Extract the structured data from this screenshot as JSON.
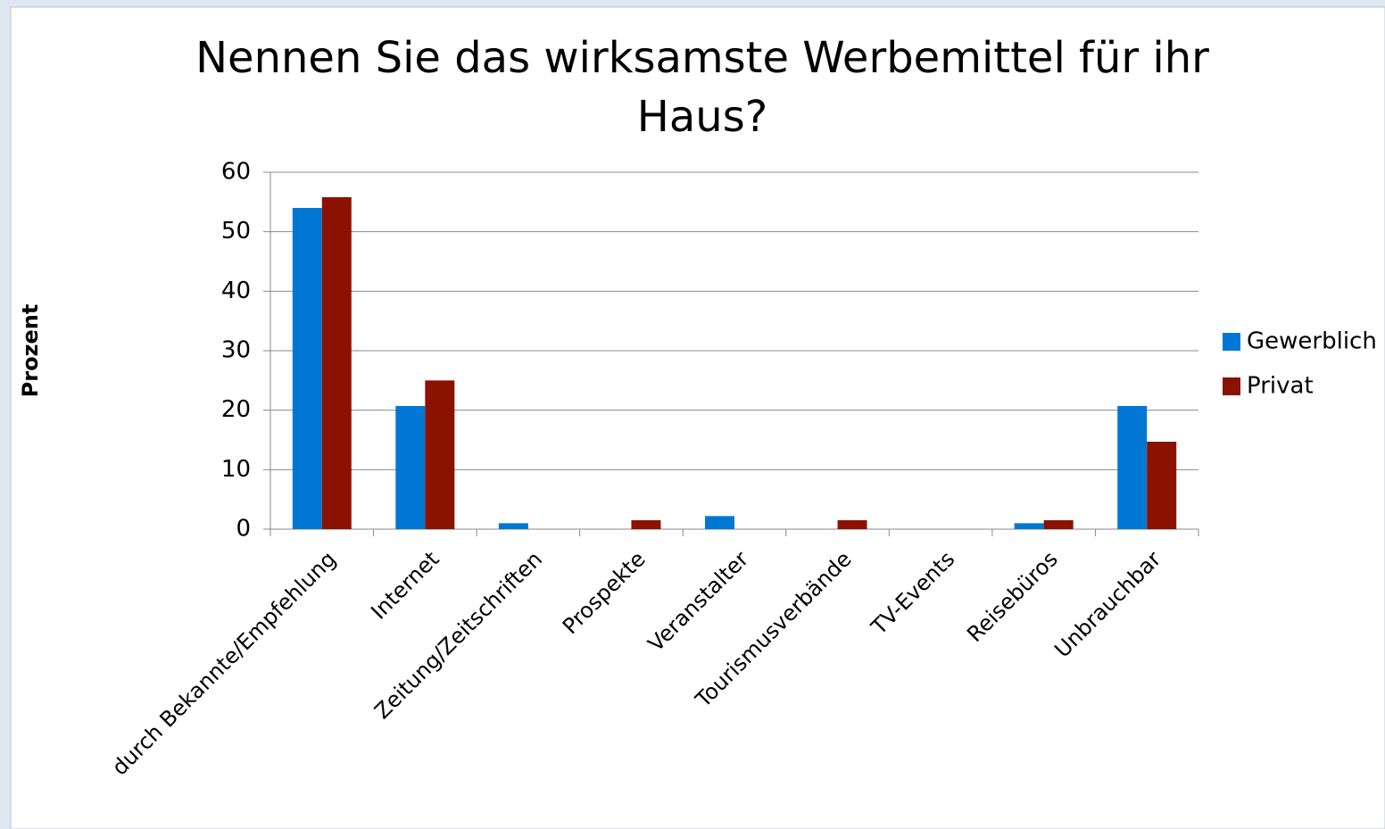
{
  "chart_data": {
    "type": "bar",
    "title": "Nennen Sie das wirksamste Werbemittel für ihr Haus?",
    "y_label": "Prozent",
    "categories": [
      "durch Bekannte/Empfehlung",
      "Internet",
      "Zeitung/Zeitschriften",
      "Prospekte",
      "Veranstalter",
      "Tourismusverbände",
      "TV-Events",
      "Reisebüros",
      "Unbrauchbar"
    ],
    "series": [
      {
        "name": "Gewerblich",
        "color": "#0077d4",
        "values": [
          54,
          20.7,
          1,
          0,
          2.2,
          0,
          0,
          1,
          20.7
        ]
      },
      {
        "name": "Privat",
        "color": "#8b1200",
        "values": [
          55.8,
          25,
          0,
          1.5,
          0,
          1.5,
          0,
          1.5,
          14.7
        ]
      }
    ],
    "ylim": [
      0,
      60
    ],
    "yticks": [
      0,
      10,
      20,
      30,
      40,
      50,
      60
    ],
    "grid": true,
    "legend": "right"
  }
}
